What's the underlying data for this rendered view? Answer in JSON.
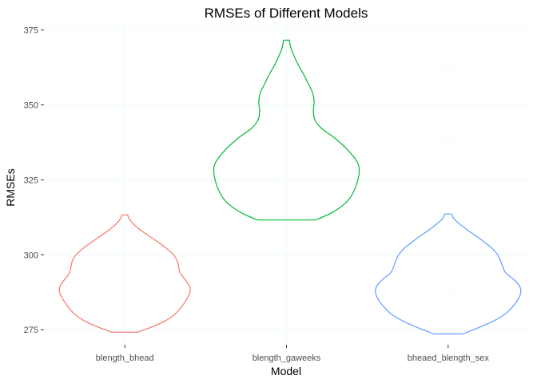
{
  "chart_data": {
    "type": "violin",
    "title": "RMSEs of Different Models",
    "xlabel": "Model",
    "ylabel": "RMSEs",
    "ylim": [
      270,
      377
    ],
    "y_ticks": [
      275,
      300,
      325,
      350,
      375
    ],
    "grid": true,
    "legend": "none",
    "categories": [
      "blength_bhead",
      "blength_gaweeks",
      "bheaed_blength_sex"
    ],
    "series": [
      {
        "category": "blength_bhead",
        "color": "#F8766D",
        "min": 274.2,
        "max": 313.3,
        "profile": [
          [
            274.2,
            0.18
          ],
          [
            276,
            0.38
          ],
          [
            278,
            0.56
          ],
          [
            280,
            0.68
          ],
          [
            282,
            0.76
          ],
          [
            284,
            0.82
          ],
          [
            286,
            0.87
          ],
          [
            288,
            0.9
          ],
          [
            290,
            0.88
          ],
          [
            292,
            0.82
          ],
          [
            294,
            0.76
          ],
          [
            296,
            0.74
          ],
          [
            298,
            0.72
          ],
          [
            300,
            0.67
          ],
          [
            302,
            0.58
          ],
          [
            304,
            0.47
          ],
          [
            306,
            0.35
          ],
          [
            308,
            0.23
          ],
          [
            310,
            0.13
          ],
          [
            312,
            0.06
          ],
          [
            313.3,
            0.04
          ]
        ]
      },
      {
        "category": "blength_gaweeks",
        "color": "#00BA38",
        "min": 311.6,
        "max": 371.6,
        "profile": [
          [
            311.6,
            0.4
          ],
          [
            314,
            0.62
          ],
          [
            317,
            0.8
          ],
          [
            320,
            0.9
          ],
          [
            324,
            0.97
          ],
          [
            328,
            1.0
          ],
          [
            331,
            0.97
          ],
          [
            335,
            0.84
          ],
          [
            339,
            0.66
          ],
          [
            342,
            0.49
          ],
          [
            345,
            0.39
          ],
          [
            348,
            0.37
          ],
          [
            351,
            0.38
          ],
          [
            354,
            0.36
          ],
          [
            357,
            0.3
          ],
          [
            360,
            0.24
          ],
          [
            363,
            0.17
          ],
          [
            366,
            0.11
          ],
          [
            369,
            0.06
          ],
          [
            371.6,
            0.04
          ]
        ]
      },
      {
        "category": "bheaed_blength_sex",
        "color": "#619CFF",
        "min": 273.6,
        "max": 313.6,
        "profile": [
          [
            273.6,
            0.2
          ],
          [
            276,
            0.45
          ],
          [
            278,
            0.63
          ],
          [
            280,
            0.77
          ],
          [
            282,
            0.86
          ],
          [
            284,
            0.93
          ],
          [
            286,
            0.98
          ],
          [
            288,
            1.0
          ],
          [
            290,
            0.97
          ],
          [
            292,
            0.89
          ],
          [
            294,
            0.79
          ],
          [
            296,
            0.75
          ],
          [
            298,
            0.72
          ],
          [
            300,
            0.68
          ],
          [
            302,
            0.61
          ],
          [
            304,
            0.51
          ],
          [
            306,
            0.4
          ],
          [
            308,
            0.28
          ],
          [
            310,
            0.17
          ],
          [
            312,
            0.08
          ],
          [
            313.6,
            0.05
          ]
        ]
      }
    ]
  }
}
